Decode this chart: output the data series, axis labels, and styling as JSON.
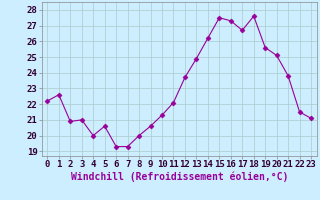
{
  "x": [
    0,
    1,
    2,
    3,
    4,
    5,
    6,
    7,
    8,
    9,
    10,
    11,
    12,
    13,
    14,
    15,
    16,
    17,
    18,
    19,
    20,
    21,
    22,
    23
  ],
  "y": [
    22.2,
    22.6,
    20.9,
    21.0,
    20.0,
    20.6,
    19.3,
    19.3,
    20.0,
    20.6,
    21.3,
    22.1,
    23.7,
    24.9,
    26.2,
    27.5,
    27.3,
    26.7,
    27.6,
    25.6,
    25.1,
    23.8,
    21.5,
    21.1
  ],
  "line_color": "#990099",
  "marker": "D",
  "marker_size": 2.5,
  "bg_color": "#cceeff",
  "grid_color": "#aacccc",
  "ylabel_ticks": [
    19,
    20,
    21,
    22,
    23,
    24,
    25,
    26,
    27,
    28
  ],
  "xlabel": "Windchill (Refroidissement éolien,°C)",
  "ylim": [
    18.7,
    28.5
  ],
  "xlim": [
    -0.5,
    23.5
  ],
  "xlabel_fontsize": 7,
  "tick_fontsize": 6.5
}
